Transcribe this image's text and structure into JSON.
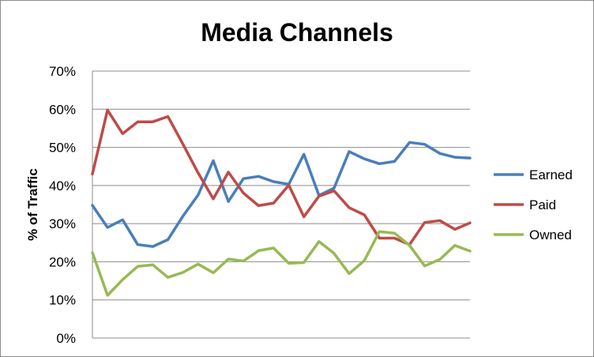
{
  "chart_data": {
    "type": "line",
    "title": "Media Channels",
    "ylabel": "% of Traffic",
    "xlabel": "",
    "ylim": [
      0,
      70
    ],
    "yticks": [
      0,
      10,
      20,
      30,
      40,
      50,
      60,
      70
    ],
    "ytick_labels": [
      "0%",
      "10%",
      "20%",
      "30%",
      "40%",
      "50%",
      "60%",
      "70%"
    ],
    "grid": "horizontal",
    "legend_position": "right",
    "x": [
      1,
      2,
      3,
      4,
      5,
      6,
      7,
      8,
      9,
      10,
      11,
      12,
      13,
      14,
      15,
      16,
      17,
      18,
      19,
      20,
      21,
      22,
      23,
      24,
      25,
      26
    ],
    "series": [
      {
        "name": "Earned",
        "color": "#4a7ebb",
        "values": [
          34.8,
          29,
          31,
          24.5,
          24,
          25.8,
          32,
          37.5,
          46.5,
          35.8,
          41.8,
          42.4,
          41,
          40.3,
          48.2,
          37.4,
          39.3,
          48.9,
          47,
          45.7,
          46.3,
          51.3,
          50.8,
          48.4,
          47.4,
          47.2
        ]
      },
      {
        "name": "Paid",
        "color": "#be4b48",
        "values": [
          43,
          59.8,
          53.6,
          56.7,
          56.7,
          58.1,
          50.8,
          43.3,
          36.5,
          43.5,
          38,
          34.7,
          35.4,
          40.1,
          31.8,
          37.2,
          38.6,
          34.2,
          32.3,
          26.2,
          26.2,
          24.5,
          30.3,
          30.8,
          28.5,
          30.2
        ]
      },
      {
        "name": "Owned",
        "color": "#98b954",
        "values": [
          22.4,
          11.2,
          15.3,
          18.8,
          19.2,
          15.9,
          17.2,
          19.4,
          17.1,
          20.7,
          20.2,
          22.9,
          23.6,
          19.6,
          19.8,
          25.3,
          22.2,
          16.9,
          20.3,
          27.9,
          27.5,
          24.3,
          18.9,
          20.6,
          24.3,
          22.8
        ]
      }
    ]
  }
}
